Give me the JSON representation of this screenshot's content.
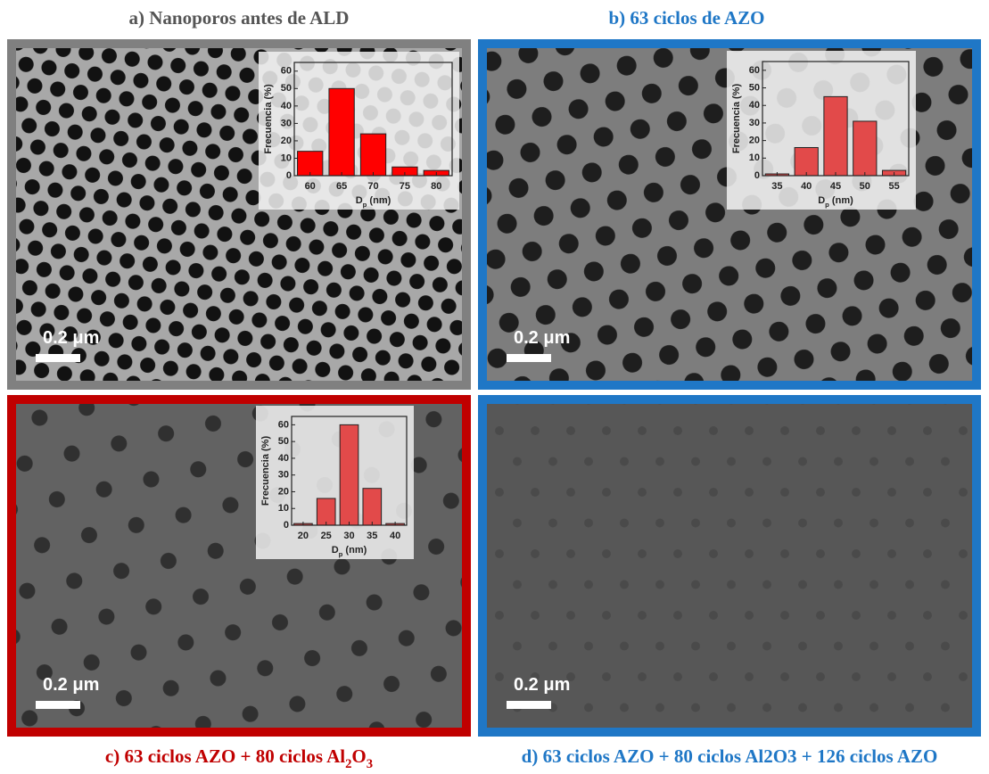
{
  "panels": [
    {
      "title": [
        {
          "text": "a) Nanoporos antes de ALD"
        }
      ],
      "scale_bar": "0.2 μm"
    },
    {
      "title": [
        {
          "text": "b) 63 ciclos de AZO"
        }
      ],
      "scale_bar": "0.2 μm"
    },
    {
      "title": [
        {
          "text": "c) 63 ciclos AZO + 80 ciclos Al"
        },
        {
          "text": "2",
          "sub": true
        },
        {
          "text": "O"
        },
        {
          "text": "3",
          "sub": true
        }
      ],
      "scale_bar": "0.2 μm"
    },
    {
      "title": [
        {
          "text": "d) 63 ciclos AZO + 80 ciclos Al2O3 + 126 ciclos AZO"
        }
      ],
      "scale_bar": "0.2 μm"
    }
  ],
  "chart_data": [
    {
      "type": "bar",
      "x_label": [
        {
          "text": "D"
        },
        {
          "text": "p",
          "sub": true
        },
        {
          "text": " (nm)"
        }
      ],
      "y_label": "Frecuencia (%)",
      "categories": [
        "60",
        "65",
        "70",
        "75",
        "80"
      ],
      "values": [
        14,
        50,
        24,
        5,
        3
      ],
      "color": "#ff0000",
      "ylim": [
        0,
        65
      ],
      "yticks": [
        0,
        10,
        20,
        30,
        40,
        50,
        60
      ]
    },
    {
      "type": "bar",
      "x_label": [
        {
          "text": "D"
        },
        {
          "text": "p",
          "sub": true
        },
        {
          "text": " (nm)"
        }
      ],
      "y_label": "Frecuencia (%)",
      "categories": [
        "35",
        "40",
        "45",
        "50",
        "55"
      ],
      "values": [
        1,
        16,
        45,
        31,
        3
      ],
      "color": "#e24a4a",
      "ylim": [
        0,
        65
      ],
      "yticks": [
        0,
        10,
        20,
        30,
        40,
        50,
        60
      ]
    },
    {
      "type": "bar",
      "x_label": [
        {
          "text": "D"
        },
        {
          "text": "p",
          "sub": true
        },
        {
          "text": " (nm)"
        }
      ],
      "y_label": "Frecuencia (%)",
      "categories": [
        "20",
        "25",
        "30",
        "35",
        "40"
      ],
      "values": [
        1,
        16,
        60,
        22,
        1
      ],
      "color": "#e24a4a",
      "ylim": [
        0,
        65
      ],
      "yticks": [
        0,
        10,
        20,
        30,
        40,
        50,
        60
      ]
    }
  ]
}
